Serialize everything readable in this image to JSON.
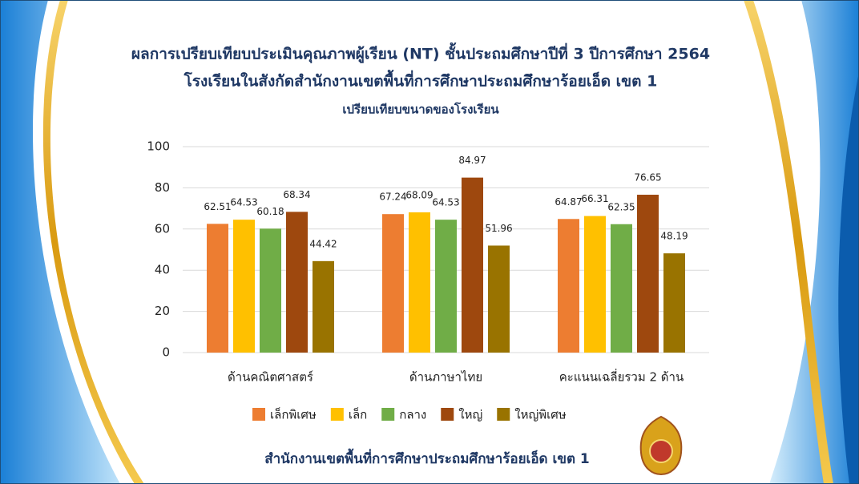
{
  "chart_data": {
    "type": "bar",
    "title": "ผลการเปรียบเทียบประเมินคุณภาพผู้เรียน (NT) ชั้นประถมศึกษาปีที่ 3 ปีการศึกษา 2564",
    "subtitles": [
      "โรงเรียนในสังกัดสำนักงานเขตพื้นที่การศึกษาประถมศึกษาร้อยเอ็ด เขต 1",
      "เปรียบเทียบขนาดของโรงเรียน"
    ],
    "categories": [
      "ด้านคณิตศาสตร์",
      "ด้านภาษาไทย",
      "คะแนนเฉลี่ยรวม 2 ด้าน"
    ],
    "series": [
      {
        "name": "เล็กพิเศษ",
        "color": "#ED7D31",
        "values": [
          62.51,
          67.24,
          64.87
        ]
      },
      {
        "name": "เล็ก",
        "color": "#FFC000",
        "values": [
          64.53,
          68.09,
          66.31
        ]
      },
      {
        "name": "กลาง",
        "color": "#70AD47",
        "values": [
          60.18,
          64.53,
          62.35
        ]
      },
      {
        "name": "ใหญ่",
        "color": "#9E480E",
        "values": [
          68.34,
          84.97,
          76.65
        ]
      },
      {
        "name": "ใหญ่พิเศษ",
        "color": "#997300",
        "values": [
          44.42,
          51.96,
          48.19
        ]
      }
    ],
    "ylim": [
      0,
      100
    ],
    "yticks": [
      0,
      20,
      40,
      60,
      80,
      100
    ],
    "grid": true,
    "legend": "bottom"
  },
  "footer": "สำนักงานเขตพื้นที่การศึกษาประถมศึกษาร้อยเอ็ด เขต 1"
}
